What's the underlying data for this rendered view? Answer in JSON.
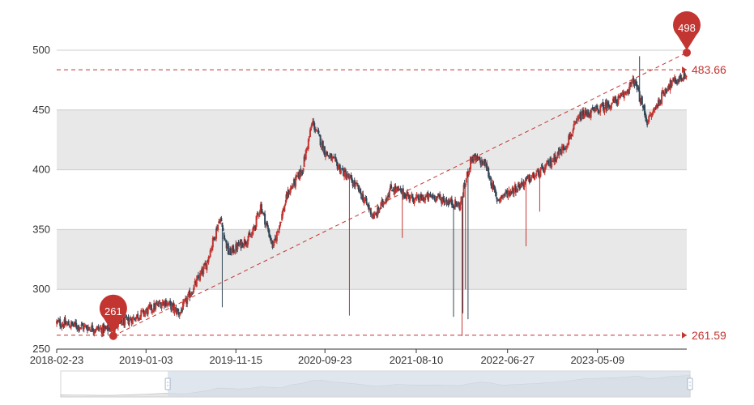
{
  "chart_data": {
    "type": "candlestick",
    "title": "",
    "xlabel": "",
    "ylabel": "",
    "ylim": [
      250,
      500
    ],
    "y_ticks": [
      250,
      300,
      350,
      400,
      450,
      500
    ],
    "x_tick_labels": [
      "2018-02-23",
      "2019-01-03",
      "2019-11-15",
      "2020-09-23",
      "2021-08-10",
      "2022-06-27",
      "2023-05-09"
    ],
    "x_range": [
      "2018-02-23",
      "2024-03-18"
    ],
    "grid": "horizontal split areas",
    "trend_anchors": [
      {
        "date": "2018-02-23",
        "close": 272
      },
      {
        "date": "2018-08-15",
        "close": 266
      },
      {
        "date": "2018-11-20",
        "close": 276
      },
      {
        "date": "2019-03-10",
        "close": 290
      },
      {
        "date": "2019-05-01",
        "close": 280
      },
      {
        "date": "2019-08-01",
        "close": 320
      },
      {
        "date": "2019-09-20",
        "close": 360
      },
      {
        "date": "2019-10-20",
        "close": 330
      },
      {
        "date": "2020-01-10",
        "close": 345
      },
      {
        "date": "2020-02-10",
        "close": 370
      },
      {
        "date": "2020-03-25",
        "close": 335
      },
      {
        "date": "2020-05-15",
        "close": 380
      },
      {
        "date": "2020-07-05",
        "close": 400
      },
      {
        "date": "2020-08-10",
        "close": 440
      },
      {
        "date": "2020-09-23",
        "close": 415
      },
      {
        "date": "2020-11-01",
        "close": 405
      },
      {
        "date": "2021-01-15",
        "close": 385
      },
      {
        "date": "2021-03-15",
        "close": 360
      },
      {
        "date": "2021-05-15",
        "close": 385
      },
      {
        "date": "2021-08-10",
        "close": 375
      },
      {
        "date": "2021-10-10",
        "close": 378
      },
      {
        "date": "2022-01-10",
        "close": 370
      },
      {
        "date": "2022-02-20",
        "close": 410
      },
      {
        "date": "2022-04-10",
        "close": 405
      },
      {
        "date": "2022-05-20",
        "close": 375
      },
      {
        "date": "2022-08-15",
        "close": 388
      },
      {
        "date": "2022-11-01",
        "close": 400
      },
      {
        "date": "2023-01-15",
        "close": 420
      },
      {
        "date": "2023-03-10",
        "close": 445
      },
      {
        "date": "2023-05-09",
        "close": 450
      },
      {
        "date": "2023-08-01",
        "close": 460
      },
      {
        "date": "2023-09-15",
        "close": 475
      },
      {
        "date": "2023-11-01",
        "close": 440
      },
      {
        "date": "2024-01-10",
        "close": 470
      },
      {
        "date": "2024-03-18",
        "close": 480
      }
    ],
    "spikes": [
      {
        "date": "2019-09-30",
        "low": 285
      },
      {
        "date": "2020-12-20",
        "low": 278
      },
      {
        "date": "2021-06-22",
        "low": 343
      },
      {
        "date": "2021-12-20",
        "low": 277
      },
      {
        "date": "2022-01-20",
        "low": 261
      },
      {
        "date": "2022-01-23",
        "low": 280
      },
      {
        "date": "2022-02-01",
        "low": 300
      },
      {
        "date": "2022-02-10",
        "low": 275
      },
      {
        "date": "2022-09-01",
        "low": 336
      },
      {
        "date": "2022-10-20",
        "low": 365
      }
    ],
    "highs": [
      {
        "date": "2023-10-05",
        "high": 495
      }
    ],
    "mark_lines": [
      {
        "name": "max",
        "value": 483.66,
        "label": "483.66"
      },
      {
        "name": "min",
        "value": 261.59,
        "label": "261.59"
      }
    ],
    "mark_points": [
      {
        "name": "low",
        "date": "2018-09-10",
        "value": 261,
        "label": "261"
      },
      {
        "name": "high",
        "date": "2024-03-18",
        "value": 498,
        "label": "498"
      }
    ],
    "colors": {
      "up": "#c23531",
      "down": "#314656",
      "markline": "#c23531",
      "split_area_1": "#ffffff",
      "split_area_2": "#e8e8e8",
      "grid_line": "#cccccc",
      "datazoom_fill": "#d2dbe6",
      "datazoom_border": "#cfd8e3"
    },
    "data_zoom": {
      "start_fraction": 0.17,
      "end_fraction": 1.0
    }
  }
}
